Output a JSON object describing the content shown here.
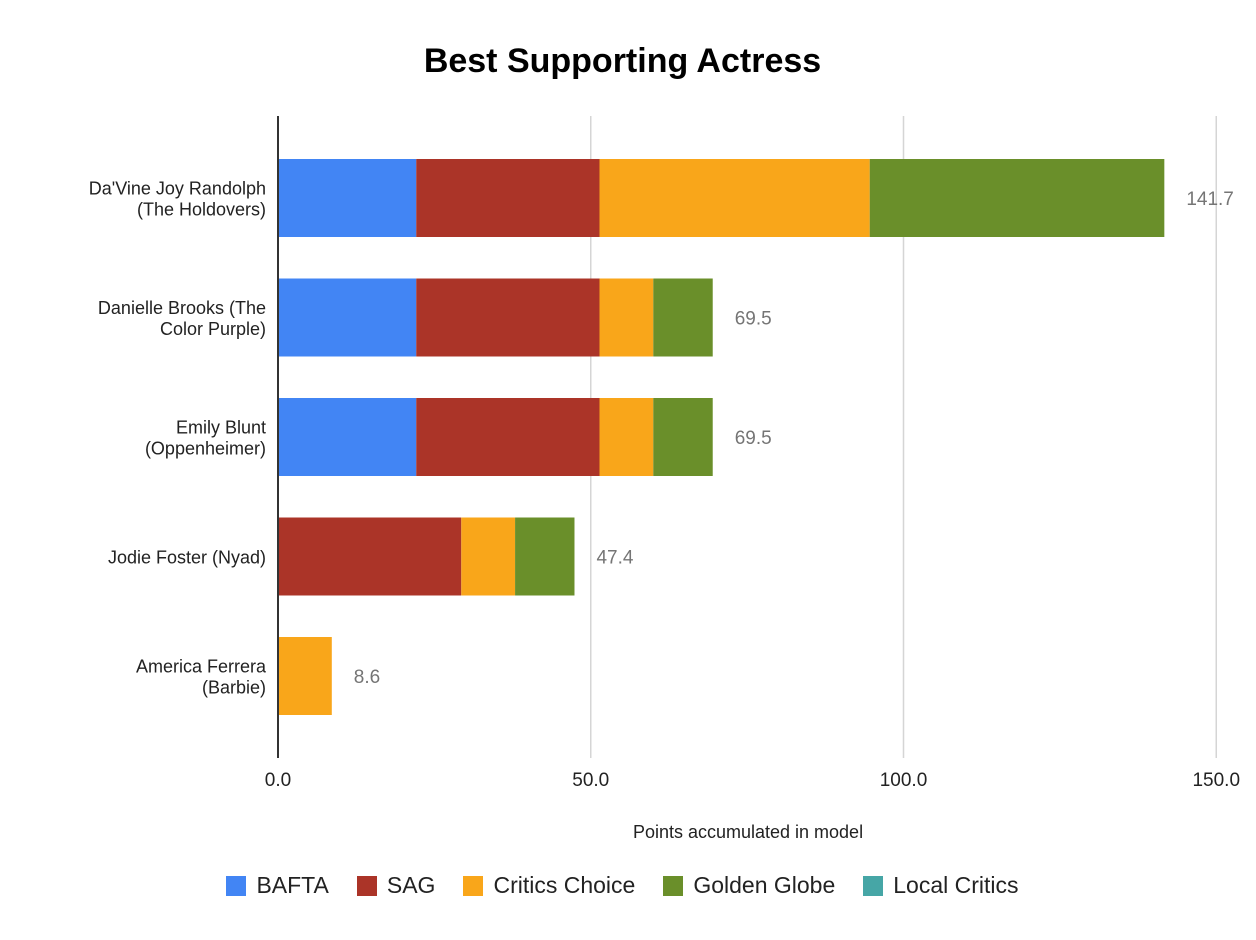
{
  "chart_data": {
    "type": "bar",
    "orientation": "horizontal",
    "stacked": true,
    "title": "Best Supporting Actress",
    "xlabel": "Points accumulated in model",
    "ylabel": "",
    "xlim": [
      0,
      150
    ],
    "xticks": [
      0,
      50,
      100,
      150
    ],
    "xtick_labels": [
      "0.0",
      "50.0",
      "100.0",
      "150.0"
    ],
    "grid": true,
    "legend_position": "bottom",
    "categories": [
      [
        "Da'Vine Joy Randolph",
        "(The Holdovers)"
      ],
      [
        "Danielle Brooks (The",
        "Color Purple)"
      ],
      [
        "Emily Blunt",
        "(Oppenheimer)"
      ],
      [
        "Jodie Foster (Nyad)"
      ],
      [
        "America Ferrera",
        "(Barbie)"
      ]
    ],
    "totals": [
      "141.7",
      "69.5",
      "69.5",
      "47.4",
      "8.6"
    ],
    "series": [
      {
        "name": "BAFTA",
        "color": "#4285f4",
        "values": [
          22.1,
          22.1,
          22.1,
          0,
          0
        ]
      },
      {
        "name": "SAG",
        "color": "#ab3428",
        "values": [
          29.3,
          29.3,
          29.3,
          29.3,
          0
        ]
      },
      {
        "name": "Critics Choice",
        "color": "#f9a61a",
        "values": [
          43.2,
          8.6,
          8.6,
          8.6,
          8.6
        ]
      },
      {
        "name": "Golden Globe",
        "color": "#6a8f2a",
        "values": [
          47.1,
          9.5,
          9.5,
          9.5,
          0
        ]
      },
      {
        "name": "Local Critics",
        "color": "#46a6a6",
        "values": [
          0,
          0,
          0,
          0,
          0
        ]
      }
    ]
  }
}
